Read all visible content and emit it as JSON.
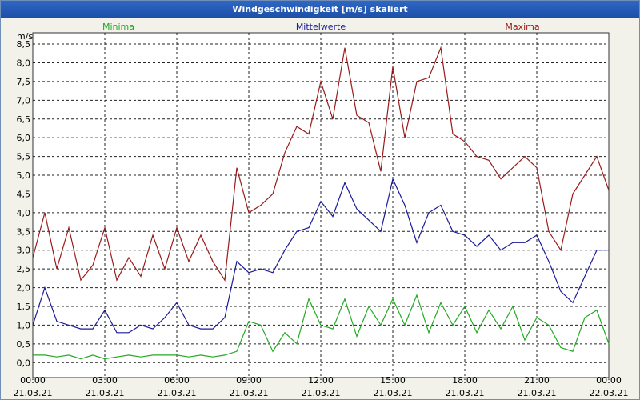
{
  "window": {
    "title": "Windgeschwindigkeit [m/s] skaliert"
  },
  "chart_data": {
    "type": "line",
    "title": "Windgeschwindigkeit [m/s] skaliert",
    "ylabel": "m/s",
    "xlabel": "",
    "ylim": [
      -0.4,
      8.8
    ],
    "yticks": [
      "0,0",
      "0,5",
      "1,0",
      "1,5",
      "2,0",
      "2,5",
      "3,0",
      "3,5",
      "4,0",
      "4,5",
      "5,0",
      "5,5",
      "6,0",
      "6,5",
      "7,0",
      "7,5",
      "8,0",
      "8,5"
    ],
    "ytick_values": [
      0,
      0.5,
      1,
      1.5,
      2,
      2.5,
      3,
      3.5,
      4,
      4.5,
      5,
      5.5,
      6,
      6.5,
      7,
      7.5,
      8,
      8.5
    ],
    "xlim": [
      0,
      24
    ],
    "xticks": [
      {
        "hour": 0,
        "time": "00:00",
        "date": "21.03.21"
      },
      {
        "hour": 3,
        "time": "03:00",
        "date": "21.03.21"
      },
      {
        "hour": 6,
        "time": "06:00",
        "date": "21.03.21"
      },
      {
        "hour": 9,
        "time": "09:00",
        "date": "21.03.21"
      },
      {
        "hour": 12,
        "time": "12:00",
        "date": "21.03.21"
      },
      {
        "hour": 15,
        "time": "15:00",
        "date": "21.03.21"
      },
      {
        "hour": 18,
        "time": "18:00",
        "date": "21.03.21"
      },
      {
        "hour": 21,
        "time": "21:00",
        "date": "21.03.21"
      },
      {
        "hour": 24,
        "time": "00:00",
        "date": "22.03.21"
      }
    ],
    "series": [
      {
        "name": "Minima",
        "color": "#22aa22",
        "x": [
          0,
          0.5,
          1,
          1.5,
          2,
          2.5,
          3,
          3.5,
          4,
          4.5,
          5,
          5.5,
          6,
          6.5,
          7,
          7.5,
          8,
          8.5,
          9,
          9.5,
          10,
          10.5,
          11,
          11.5,
          12,
          12.5,
          13,
          13.5,
          14,
          14.5,
          15,
          15.5,
          16,
          16.5,
          17,
          17.5,
          18,
          18.5,
          19,
          19.5,
          20,
          20.5,
          21,
          21.5,
          22,
          22.5,
          23,
          23.5,
          24
        ],
        "values": [
          0.2,
          0.2,
          0.15,
          0.2,
          0.1,
          0.2,
          0.1,
          0.15,
          0.2,
          0.15,
          0.2,
          0.2,
          0.2,
          0.15,
          0.2,
          0.15,
          0.2,
          0.3,
          1.1,
          1.0,
          0.3,
          0.8,
          0.5,
          1.7,
          1.0,
          0.9,
          1.7,
          0.7,
          1.5,
          1.0,
          1.7,
          1.0,
          1.8,
          0.8,
          1.6,
          1.0,
          1.5,
          0.8,
          1.4,
          0.9,
          1.5,
          0.6,
          1.2,
          1.0,
          0.4,
          0.3,
          1.2,
          1.4,
          0.5
        ]
      },
      {
        "name": "Mittelwerte",
        "color": "#1a1a9a",
        "x": [
          0,
          0.5,
          1,
          1.5,
          2,
          2.5,
          3,
          3.5,
          4,
          4.5,
          5,
          5.5,
          6,
          6.5,
          7,
          7.5,
          8,
          8.5,
          9,
          9.5,
          10,
          10.5,
          11,
          11.5,
          12,
          12.5,
          13,
          13.5,
          14,
          14.5,
          15,
          15.5,
          16,
          16.5,
          17,
          17.5,
          18,
          18.5,
          19,
          19.5,
          20,
          20.5,
          21,
          21.5,
          22,
          22.5,
          23,
          23.5,
          24
        ],
        "values": [
          1.0,
          2.0,
          1.1,
          1.0,
          0.9,
          0.9,
          1.4,
          0.8,
          0.8,
          1.0,
          0.9,
          1.2,
          1.6,
          1.0,
          0.9,
          0.9,
          1.2,
          2.7,
          2.4,
          2.5,
          2.4,
          3.0,
          3.5,
          3.6,
          4.3,
          3.9,
          4.8,
          4.1,
          3.8,
          3.5,
          4.9,
          4.2,
          3.2,
          4.0,
          4.2,
          3.5,
          3.4,
          3.1,
          3.4,
          3.0,
          3.2,
          3.2,
          3.4,
          2.7,
          1.9,
          1.6,
          2.3,
          3.0,
          3.0
        ]
      },
      {
        "name": "Maxima",
        "color": "#9a1a1a",
        "x": [
          0,
          0.5,
          1,
          1.5,
          2,
          2.5,
          3,
          3.5,
          4,
          4.5,
          5,
          5.5,
          6,
          6.5,
          7,
          7.5,
          8,
          8.5,
          9,
          9.5,
          10,
          10.5,
          11,
          11.5,
          12,
          12.5,
          13,
          13.5,
          14,
          14.5,
          15,
          15.5,
          16,
          16.5,
          17,
          17.5,
          18,
          18.5,
          19,
          19.5,
          20,
          20.5,
          21,
          21.5,
          22,
          22.5,
          23,
          23.5,
          24
        ],
        "values": [
          2.8,
          4.0,
          2.5,
          3.6,
          2.2,
          2.6,
          3.6,
          2.2,
          2.8,
          2.3,
          3.4,
          2.5,
          3.6,
          2.7,
          3.4,
          2.7,
          2.2,
          5.2,
          4.0,
          4.2,
          4.5,
          5.6,
          6.3,
          6.1,
          7.5,
          6.5,
          8.4,
          6.6,
          6.4,
          5.1,
          7.9,
          6.0,
          7.5,
          7.6,
          8.4,
          6.1,
          5.9,
          5.5,
          5.4,
          4.9,
          5.2,
          5.5,
          5.2,
          3.5,
          3.0,
          4.5,
          5.0,
          5.5,
          4.6
        ]
      }
    ],
    "legend": [
      "Minima",
      "Mittelwerte",
      "Maxima"
    ],
    "legend_position": "top",
    "grid": true
  }
}
